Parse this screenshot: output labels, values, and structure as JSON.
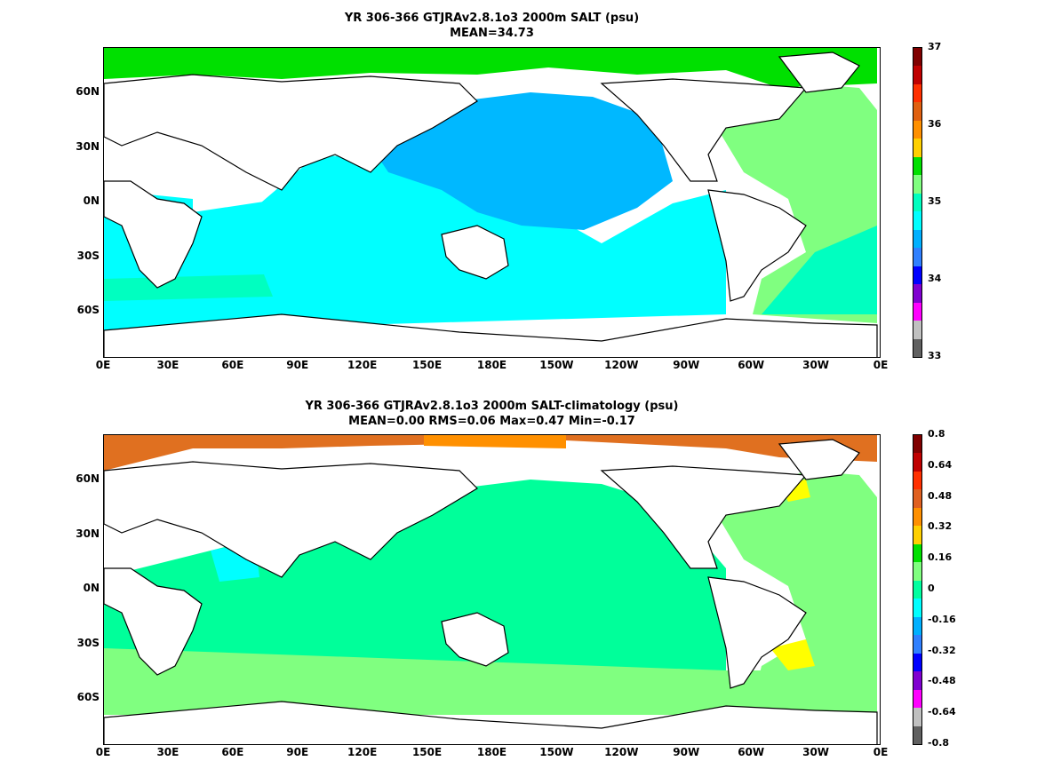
{
  "panels": [
    {
      "title": "YR 306-366 GTJRAv2.8.1o3 2000m SALT (psu)",
      "subtitle": "MEAN=34.73",
      "colorbar": {
        "labels": [
          "37",
          "36",
          "35",
          "34",
          "33"
        ],
        "colors": [
          "#800000",
          "#c00000",
          "#ff3000",
          "#e06010",
          "#ff9000",
          "#ffd000",
          "#00e000",
          "#80ff80",
          "#00ffc0",
          "#00ffff",
          "#00b0ff",
          "#3080ff",
          "#0000ff",
          "#8000d0",
          "#ff00ff",
          "#c0c0c0",
          "#606060"
        ]
      },
      "ocean_regions": [
        {
          "name": "north-pacific",
          "color": "#00b8ff"
        },
        {
          "name": "south-ocean",
          "color": "#00ffff"
        },
        {
          "name": "atlantic",
          "color": "#80ff80"
        },
        {
          "name": "arctic",
          "color": "#00e000"
        }
      ]
    },
    {
      "title": "YR 306-366 GTJRAv2.8.1o3 2000m SALT-climatology (psu)",
      "subtitle": "MEAN=0.00   RMS=0.06   Max=0.47   Min=-0.17",
      "colorbar": {
        "labels": [
          "0.8",
          "0.64",
          "0.48",
          "0.32",
          "0.16",
          "0",
          "-0.16",
          "-0.32",
          "-0.48",
          "-0.64",
          "-0.8"
        ],
        "colors": [
          "#800000",
          "#c00000",
          "#ff3000",
          "#e06020",
          "#ff9000",
          "#ffd000",
          "#00e000",
          "#80ff80",
          "#00ffa0",
          "#00ffff",
          "#00b0ff",
          "#3080ff",
          "#0000ff",
          "#8000d0",
          "#ff00ff",
          "#c0c0c0",
          "#606060"
        ]
      },
      "ocean_regions": [
        {
          "name": "pacific",
          "color": "#00ff9a"
        },
        {
          "name": "south-ocean",
          "color": "#80ff80"
        },
        {
          "name": "arctic",
          "color": "#e07020"
        },
        {
          "name": "yellow-patch",
          "color": "#ffff00"
        }
      ]
    }
  ],
  "axes": {
    "x_ticks": [
      "0E",
      "30E",
      "60E",
      "90E",
      "120E",
      "150E",
      "180E",
      "150W",
      "120W",
      "90W",
      "60W",
      "30W",
      "0E"
    ],
    "y_ticks": [
      "60N",
      "30N",
      "0N",
      "30S",
      "60S"
    ]
  }
}
